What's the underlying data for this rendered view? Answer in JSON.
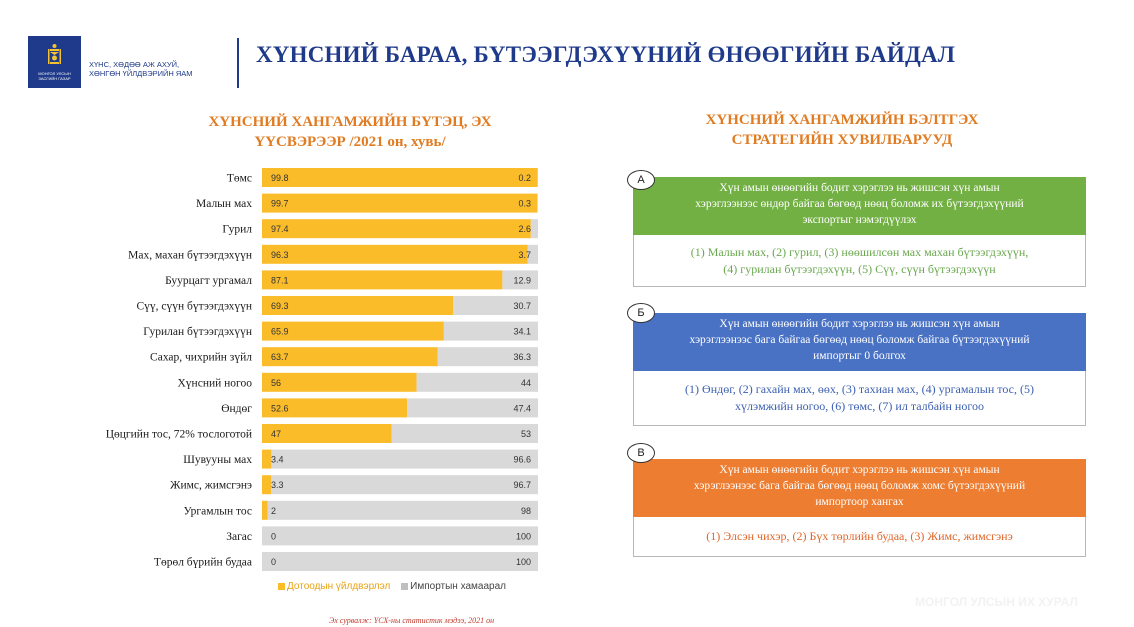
{
  "header": {
    "ministry_line1": "ХҮНС, ХӨДӨӨ АЖ АХУЙ,",
    "ministry_line2": "ХӨНГӨН ҮЙЛДВЭРИЙН ЯАМ",
    "logo_caption1": "МОНГОЛ УЛСЫН",
    "logo_caption2": "ЗАСГИЙН ГАЗАР",
    "title": "ХҮНСНИЙ БАРАА, БҮТЭЭГДЭХҮҮНИЙ ӨНӨӨГИЙН БАЙДАЛ"
  },
  "chart_title": {
    "line1": "ХҮНСНИЙ ХАНГАМЖИЙН БҮТЭЦ, ЭХ",
    "line2": "ҮҮСВЭРЭЭР  /2021 он, хувь/"
  },
  "chart_data": {
    "type": "bar",
    "orientation": "horizontal",
    "stacked": true,
    "categories": [
      "Төмс",
      "Малын мах",
      "Гурил",
      "Мах, махан бүтээгдэхүүн",
      "Буурцагт ургамал",
      "Сүү, сүүн бүтээгдэхүүн",
      "Гурилан бүтээгдэхүүн",
      "Сахар, чихрийн зүйл",
      "Хүнсний ногоо",
      "Өндөг",
      "Цөцгийн тос, 72% тослоготой",
      "Шувууны мах",
      "Жимс, жимсгэнэ",
      "Ургамлын тос",
      "Загас",
      "Төрөл бүрийн будаа"
    ],
    "series": [
      {
        "name": "Дотоодын үйлдвэрлэл",
        "values": [
          99.8,
          99.7,
          97.4,
          96.3,
          87.1,
          69.3,
          65.9,
          63.7,
          56,
          52.6,
          47,
          3.4,
          3.3,
          2,
          0,
          0
        ]
      },
      {
        "name": "Импортын хамаарал",
        "values": [
          0.2,
          0.3,
          2.6,
          3.7,
          12.9,
          30.7,
          34.1,
          36.3,
          44,
          47.4,
          53,
          96.6,
          96.7,
          98,
          100,
          100
        ]
      }
    ],
    "labels_domestic": [
      "99.8",
      "99.7",
      "97.4",
      "96.3",
      "87.1",
      "69.3",
      "65.9",
      "63.7",
      "56",
      "52.6",
      "47",
      "3.4",
      "3.3",
      "2",
      "0",
      "0"
    ],
    "labels_import": [
      "0.2",
      "0.3",
      "2.6",
      "3.7",
      "12.9",
      "30.7",
      "34.1",
      "36.3",
      "44",
      "47.4",
      "53",
      "96.6",
      "96.7",
      "98",
      "100",
      "100"
    ],
    "xlim": [
      0,
      100
    ],
    "grid": false,
    "legend_position": "bottom",
    "colors": {
      "domestic": "#fbbc2a",
      "import": "#d9d9d9"
    }
  },
  "source": "Эх сурвалж: ҮСХ-ны статистик мэдээ, 2021 он",
  "strategies_title": {
    "line1": "ХҮНСНИЙ ХАНГАМЖИЙН БЭЛТГЭХ",
    "line2": "СТРАТЕГИЙН ХУВИЛБАРУУД"
  },
  "strategies": [
    {
      "tag": "A",
      "color": "#72b043",
      "body_color": "#6aa84f",
      "banner": [
        "Хүн амын өнөөгийн бодит хэрэглээ нь жишсэн хүн амын",
        "хэрэглээнээс өндөр байгаа бөгөөд нөөц боломж их бүтээгдэхүүний",
        "экспортыг нэмэгдүүлэх"
      ],
      "body": [
        "(1) Малын мах, (2) гурил, (3) нөөшилсөн мах махан бүтээгдэхүүн,",
        "(4) гурилан бүтээгдэхүүн, (5) Сүү, сүүн бүтээгдэхүүн"
      ]
    },
    {
      "tag": "Б",
      "color": "#4a72c4",
      "body_color": "#3b5fb0",
      "banner": [
        "Хүн амын өнөөгийн бодит хэрэглээ нь жишсэн хүн амын",
        "хэрэглээнээс бага байгаа бөгөөд нөөц боломж байгаа бүтээгдэхүүний",
        "импортыг 0 болгох"
      ],
      "body": [
        "(1) Өндөг, (2) гахайн мах, өөх, (3) тахиан мах, (4) ургамалын тос, (5)",
        "хүлэмжийн ногоо, (6) төмс, (7) ил талбайн ногоо"
      ]
    },
    {
      "tag": "В",
      "color": "#ed7d31",
      "body_color": "#e0662a",
      "banner": [
        "Хүн амын өнөөгийн бодит хэрэглээ нь жишсэн хүн амын",
        "хэрэглээнээс бага байгаа бөгөөд нөөц боломж хомс бүтээгдэхүүний",
        "импортоор хангах"
      ],
      "body": [
        "(1) Элсэн чихэр, (2) Бүх төрлийн будаа, (3) Жимс, жимсгэнэ"
      ]
    }
  ],
  "watermark": "МОНГОЛ УЛСЫН ИХ ХУРАЛ"
}
